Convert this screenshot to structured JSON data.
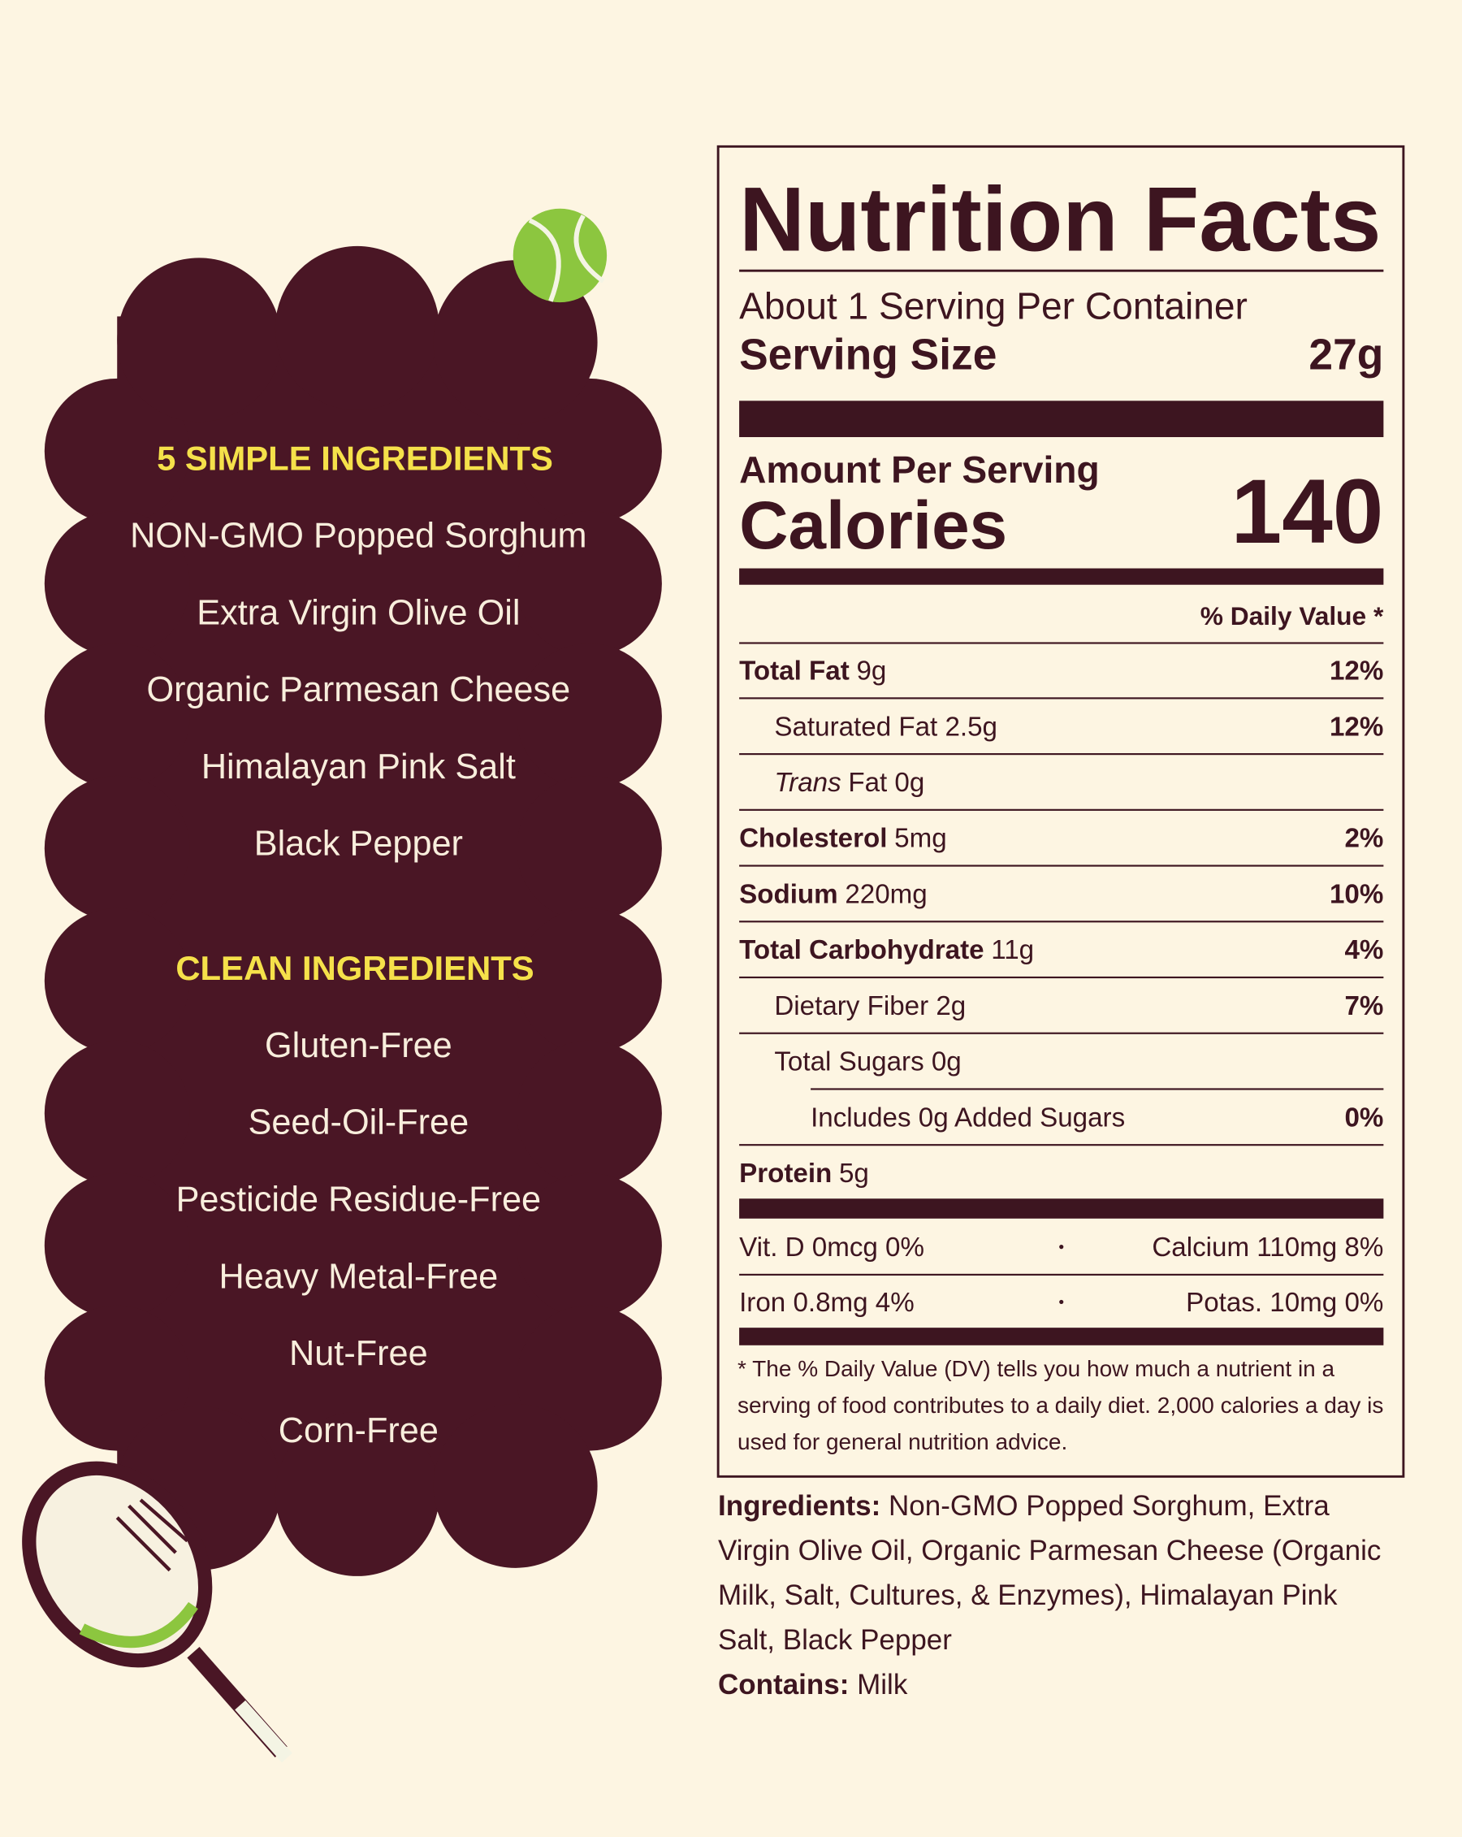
{
  "ingredients_panel": {
    "sections": [
      {
        "heading": "5 SIMPLE INGREDIENTS",
        "items": [
          "NON-GMO Popped Sorghum",
          "Extra Virgin Olive Oil",
          "Organic Parmesan Cheese",
          "Himalayan Pink Salt",
          "Black Pepper"
        ]
      },
      {
        "heading": "CLEAN INGREDIENTS",
        "items": [
          "Gluten-Free",
          "Seed-Oil-Free",
          "Pesticide Residue-Free",
          "Heavy Metal-Free",
          "Nut-Free",
          "Corn-Free"
        ]
      }
    ]
  },
  "nutrition_facts": {
    "title": "Nutrition Facts",
    "servings": "About 1 Serving Per Container",
    "serving_size_label": "Serving Size",
    "serving_size_value": "27g",
    "amount_per_serving": "Amount Per Serving",
    "calories_label": "Calories",
    "calories_value": 140,
    "dv_header": "% Daily Value *",
    "rows": [
      {
        "name": "Total Fat",
        "amount": "9g",
        "dv": "12%",
        "bold": true,
        "indent": 0
      },
      {
        "name": "Saturated Fat 2.5g",
        "dv": "12%",
        "indent": 1
      },
      {
        "name": "Trans",
        "amount": "Fat 0g",
        "italic": true,
        "indent": 1
      },
      {
        "name": "Cholesterol",
        "amount": "5mg",
        "dv": "2%",
        "bold": true,
        "indent": 0
      },
      {
        "name": "Sodium",
        "amount": "220mg",
        "dv": "10%",
        "bold": true,
        "indent": 0
      },
      {
        "name": "Total Carbohydrate",
        "amount": "11g",
        "dv": "4%",
        "bold": true,
        "indent": 0
      },
      {
        "name": "Dietary Fiber 2g",
        "dv": "7%",
        "indent": 1
      },
      {
        "name": "Total Sugars 0g",
        "indent": 1
      },
      {
        "name": "Includes 0g Added Sugars",
        "dv": "0%",
        "indent": 2
      },
      {
        "name": "Protein",
        "amount": "5g",
        "bold": true,
        "indent": 0
      }
    ],
    "vitamins": [
      [
        "Vit. D 0mcg 0%",
        "Calcium 110mg 8%"
      ],
      [
        "Iron 0.8mg 4%",
        "Potas. 10mg 0%"
      ]
    ],
    "footnote": "* The % Daily Value (DV) tells you how much a nutrient in a serving of food contributes to a daily diet. 2,000 calories a day is used for general nutrition advice."
  },
  "ingredients": {
    "label": "Ingredients:",
    "text": "Non-GMO Popped Sorghum, Extra Virgin Olive Oil, Organic Parmesan Cheese (Organic Milk, Salt, Cultures, & Enzymes), Himalayan Pink Salt, Black Pepper"
  },
  "contains": {
    "label": "Contains:",
    "text": "Milk"
  }
}
